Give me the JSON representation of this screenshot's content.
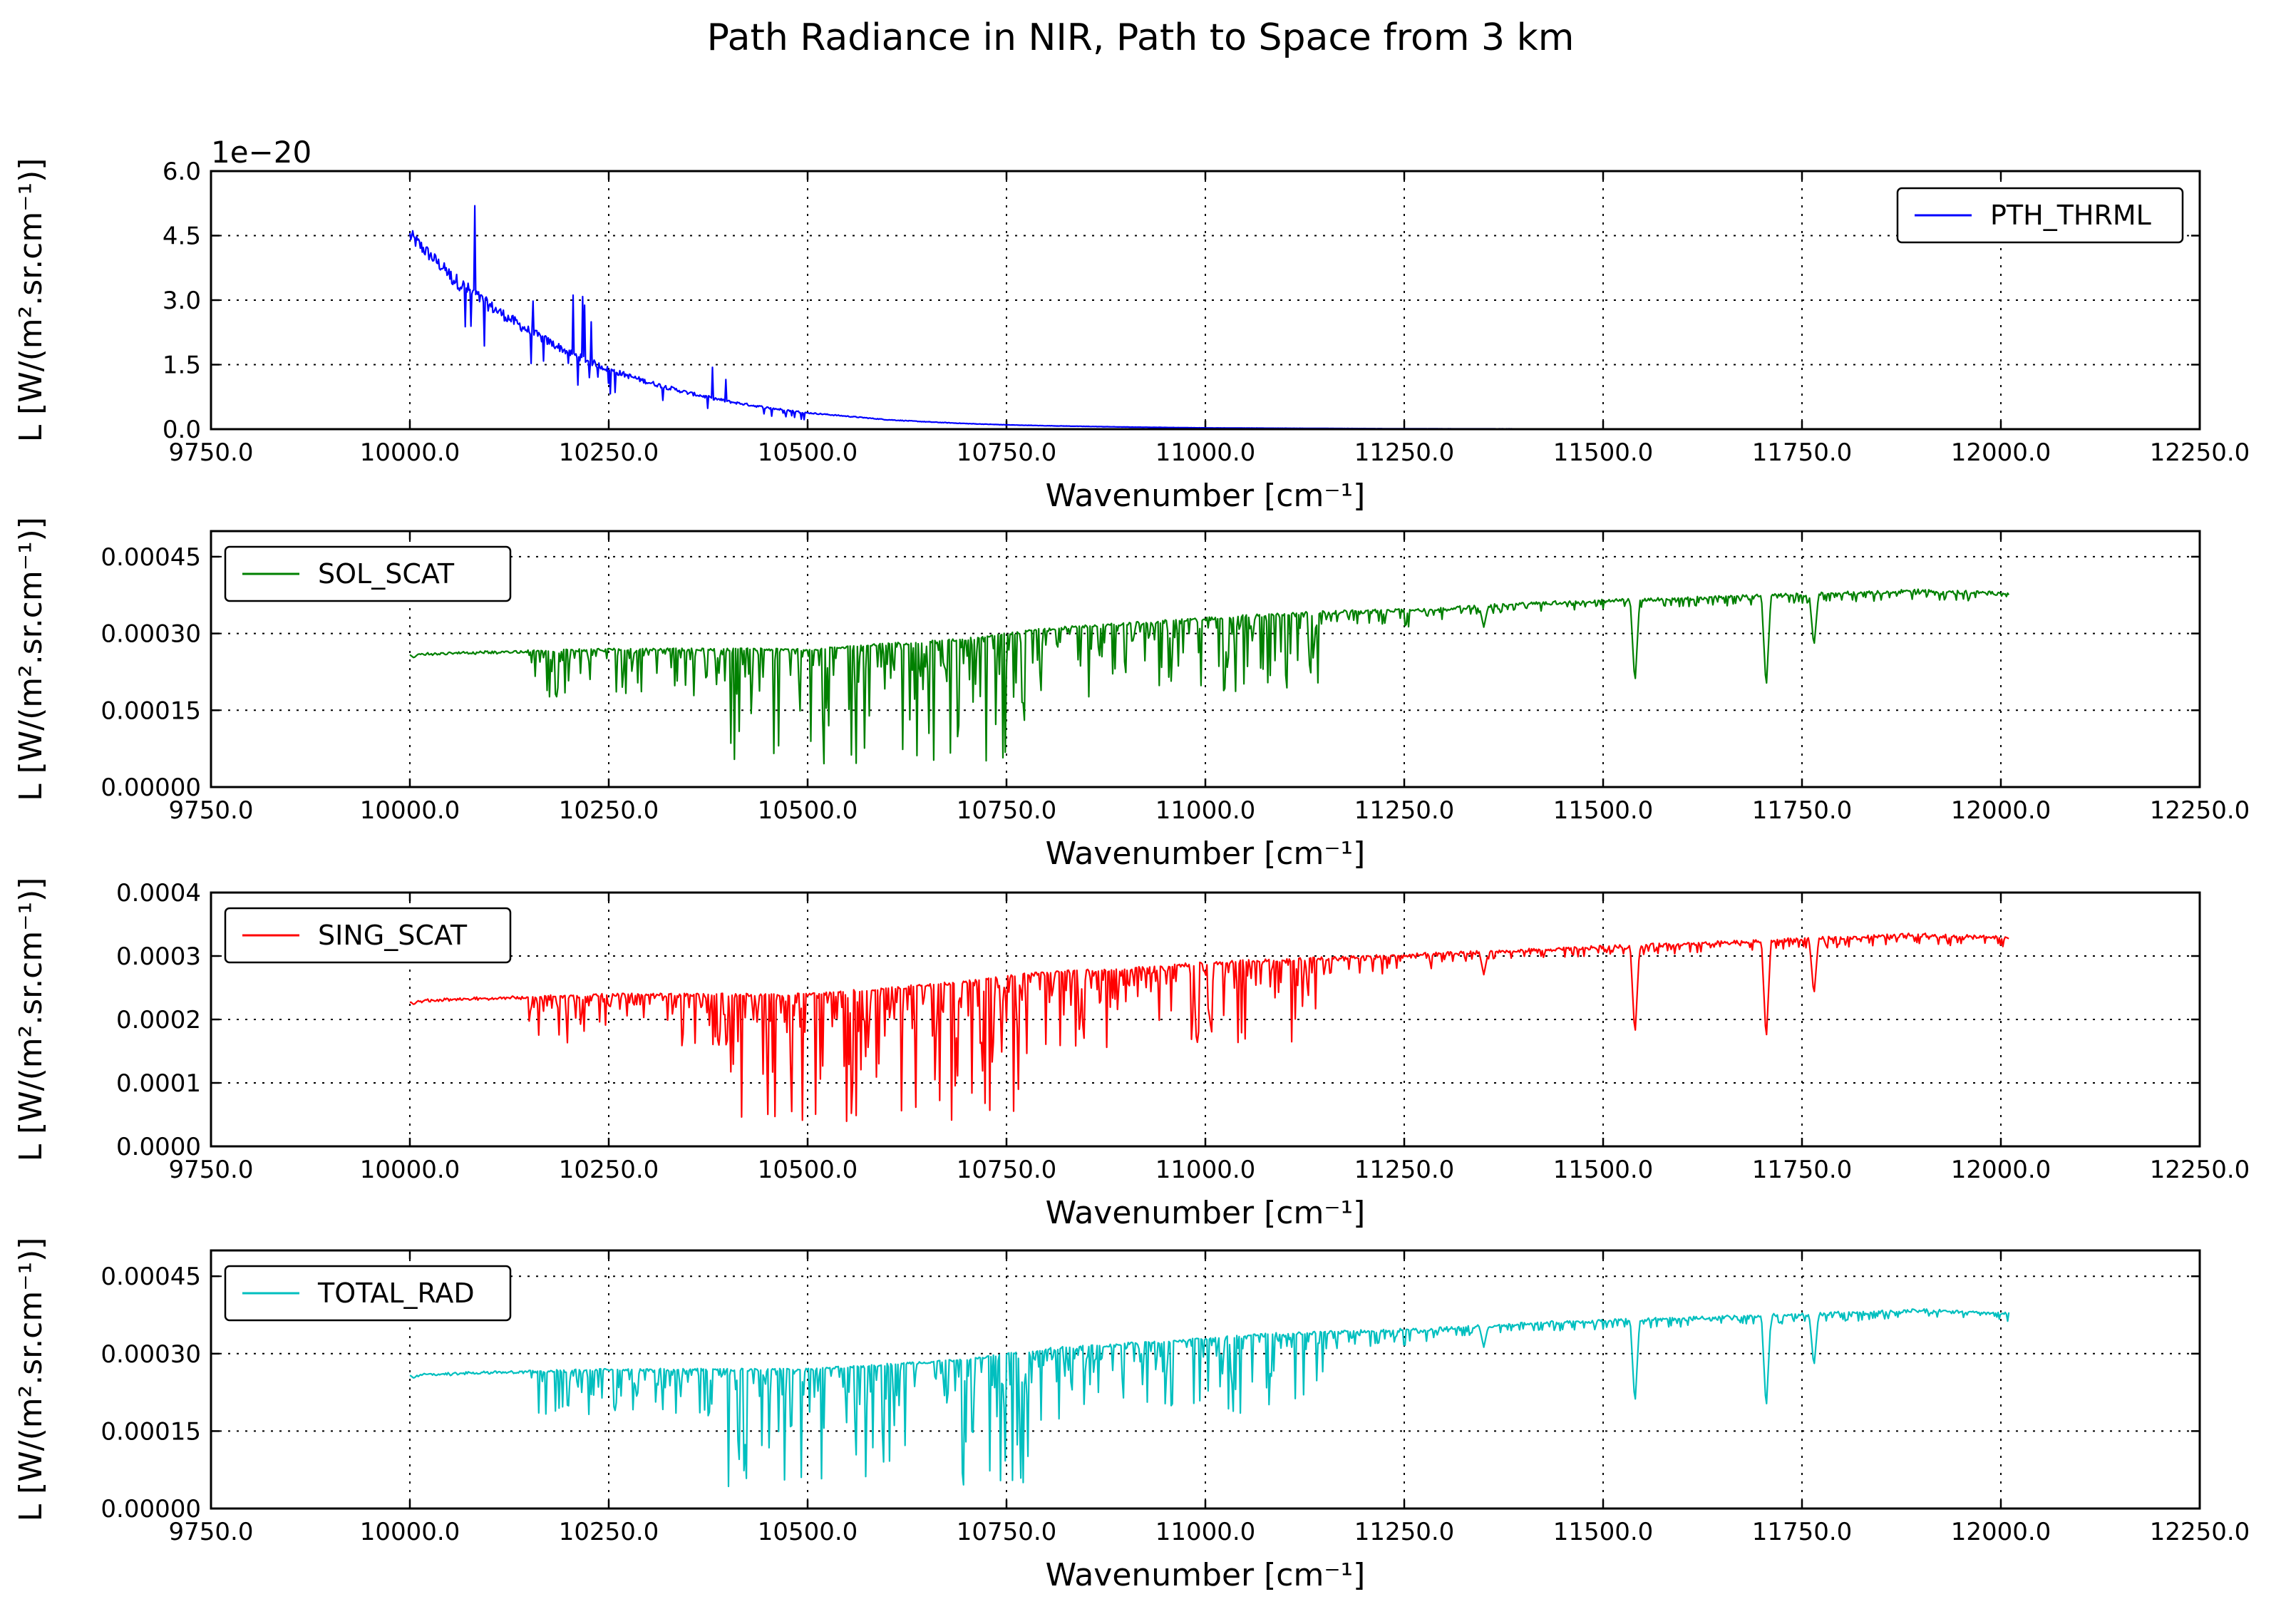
{
  "figure": {
    "title": "Path Radiance in NIR, Path to Space from 3 km"
  },
  "chart_data": [
    {
      "type": "line",
      "name": "pth-thrml",
      "xlabel": "Wavenumber [cm⁻¹]",
      "ylabel": "L [W/(m².sr.cm⁻¹)]",
      "xlim": [
        9750,
        12250
      ],
      "ylim": [
        0,
        6e-20
      ],
      "offset_text": "1e−20",
      "xticks": [
        "9750.0",
        "10000.0",
        "10250.0",
        "10500.0",
        "10750.0",
        "11000.0",
        "11250.0",
        "11500.0",
        "11750.0",
        "12000.0",
        "12250.0"
      ],
      "yticks": [
        "0.0",
        "1.5",
        "3.0",
        "4.5",
        "6.0"
      ],
      "ytick_values": [
        0,
        1.5e-20,
        3e-20,
        4.5e-20,
        6e-20
      ],
      "grid": true,
      "legend_position": "upper right",
      "series": [
        {
          "name": "PTH_THRML",
          "color": "#0000ff",
          "x": [
            10000,
            10050,
            10100,
            10150,
            10200,
            10250,
            10300,
            10350,
            10400,
            10450,
            10500,
            10550,
            10600,
            10650,
            10700,
            10750,
            10800,
            10900,
            11000,
            11250,
            11500,
            12000
          ],
          "y": [
            4.5e-20,
            3.6e-20,
            2.9e-20,
            2.3e-20,
            1.8e-20,
            1.4e-20,
            1.1e-20,
            8.5e-21,
            6.5e-21,
            5e-21,
            3.8e-21,
            3e-21,
            2.2e-21,
            1.7e-21,
            1.3e-21,
            1e-21,
            8e-22,
            5e-22,
            3e-22,
            1e-22,
            5e-23,
            1e-23
          ]
        }
      ]
    },
    {
      "type": "line",
      "name": "sol-scat",
      "xlabel": "Wavenumber [cm⁻¹]",
      "ylabel": "L [W/(m².sr.cm⁻¹)]",
      "xlim": [
        9750,
        12250
      ],
      "ylim": [
        0,
        0.0005
      ],
      "yticks": [
        "0.00000",
        "0.00015",
        "0.00030",
        "0.00045"
      ],
      "ytick_values": [
        0,
        0.00015,
        0.0003,
        0.00045
      ],
      "xticks": [
        "9750.0",
        "10000.0",
        "10250.0",
        "10500.0",
        "10750.0",
        "11000.0",
        "11250.0",
        "11500.0",
        "11750.0",
        "12000.0",
        "12250.0"
      ],
      "grid": true,
      "legend_position": "upper left",
      "series": [
        {
          "name": "SOL_SCAT",
          "color": "#008000",
          "x": [
            10000,
            10100,
            10200,
            10250,
            10300,
            10400,
            10500,
            10600,
            10700,
            10750,
            10800,
            10900,
            11000,
            11100,
            11200,
            11300,
            11400,
            11500,
            11540,
            11600,
            11700,
            11760,
            11800,
            11900,
            12000
          ],
          "y": [
            0.00026,
            0.000265,
            0.000268,
            0.00027,
            0.00027,
            0.00027,
            0.00027,
            0.00028,
            0.00029,
            0.0003,
            0.00031,
            0.00032,
            0.00033,
            0.00034,
            0.000345,
            0.00035,
            0.00036,
            0.000365,
            0.0002,
            0.00037,
            0.000375,
            0.00027,
            0.00038,
            0.000385,
            0.00038
          ]
        }
      ]
    },
    {
      "type": "line",
      "name": "sing-scat",
      "xlabel": "Wavenumber [cm⁻¹]",
      "ylabel": "L [W/(m².sr.cm⁻¹)]",
      "xlim": [
        9750,
        12250
      ],
      "ylim": [
        0,
        0.0004
      ],
      "yticks": [
        "0.0000",
        "0.0001",
        "0.0002",
        "0.0003",
        "0.0004"
      ],
      "ytick_values": [
        0,
        0.0001,
        0.0002,
        0.0003,
        0.0004
      ],
      "xticks": [
        "9750.0",
        "10000.0",
        "10250.0",
        "10500.0",
        "10750.0",
        "11000.0",
        "11250.0",
        "11500.0",
        "11750.0",
        "12000.0",
        "12250.0"
      ],
      "grid": true,
      "legend_position": "upper left",
      "series": [
        {
          "name": "SING_SCAT",
          "color": "#ff0000",
          "x": [
            10000,
            10100,
            10200,
            10250,
            10300,
            10400,
            10500,
            10600,
            10700,
            10750,
            10800,
            10900,
            11000,
            11100,
            11200,
            11300,
            11400,
            11500,
            11540,
            11600,
            11700,
            11760,
            11800,
            11900,
            12000
          ],
          "y": [
            0.00023,
            0.000235,
            0.000238,
            0.00024,
            0.00024,
            0.00024,
            0.00024,
            0.00025,
            0.00026,
            0.00027,
            0.000275,
            0.00028,
            0.00029,
            0.000295,
            0.0003,
            0.000305,
            0.00031,
            0.000315,
            0.00017,
            0.00032,
            0.000325,
            0.00023,
            0.00033,
            0.000335,
            0.00033
          ]
        }
      ]
    },
    {
      "type": "line",
      "name": "total-rad",
      "xlabel": "Wavenumber [cm⁻¹]",
      "ylabel": "L [W/(m².sr.cm⁻¹)]",
      "xlim": [
        9750,
        12250
      ],
      "ylim": [
        0,
        0.0005
      ],
      "yticks": [
        "0.00000",
        "0.00015",
        "0.00030",
        "0.00045"
      ],
      "ytick_values": [
        0,
        0.00015,
        0.0003,
        0.00045
      ],
      "xticks": [
        "9750.0",
        "10000.0",
        "10250.0",
        "10500.0",
        "10750.0",
        "11000.0",
        "11250.0",
        "11500.0",
        "11750.0",
        "12000.0",
        "12250.0"
      ],
      "grid": true,
      "legend_position": "upper left",
      "series": [
        {
          "name": "TOTAL_RAD",
          "color": "#00bfbf",
          "x": [
            10000,
            10100,
            10200,
            10250,
            10300,
            10400,
            10500,
            10600,
            10700,
            10750,
            10800,
            10900,
            11000,
            11100,
            11200,
            11300,
            11400,
            11500,
            11540,
            11600,
            11700,
            11760,
            11800,
            11900,
            12000
          ],
          "y": [
            0.00026,
            0.000265,
            0.000268,
            0.00027,
            0.00027,
            0.00027,
            0.00027,
            0.00028,
            0.00029,
            0.0003,
            0.00031,
            0.00032,
            0.00033,
            0.00034,
            0.000345,
            0.00035,
            0.00036,
            0.000365,
            0.0002,
            0.00037,
            0.000375,
            0.00027,
            0.00038,
            0.000385,
            0.00038
          ]
        }
      ]
    }
  ]
}
